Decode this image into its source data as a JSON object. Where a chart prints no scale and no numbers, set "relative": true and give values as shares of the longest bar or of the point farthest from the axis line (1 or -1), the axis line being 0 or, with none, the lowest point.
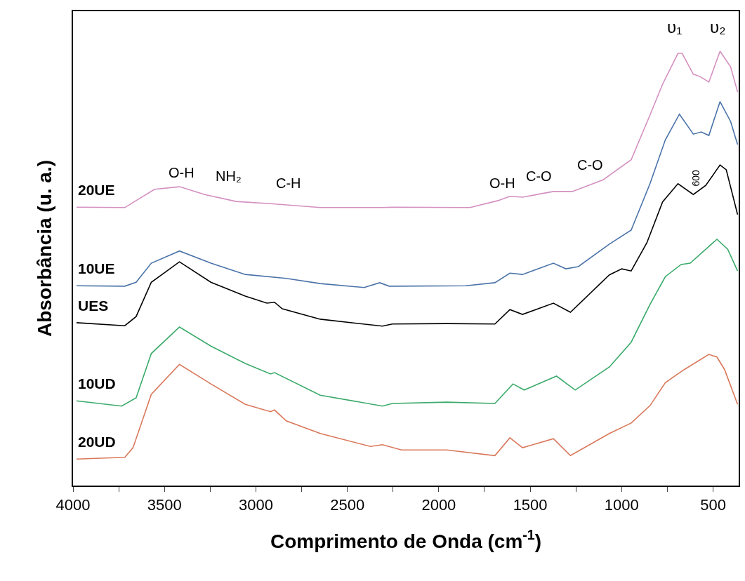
{
  "chart_data": {
    "type": "line",
    "relative": true,
    "xlabel": "Comprimento de Onda (cm$^{-1}$)",
    "ylabel": "Absorbância (u. a.)",
    "xlim": [
      4000,
      360
    ],
    "xticks": [
      4000,
      {
        "value": 3750,
        "label": null
      },
      3500,
      {
        "value": 3250,
        "label": null
      },
      3000,
      {
        "value": 2750,
        "label": null
      },
      2500,
      {
        "value": 2250,
        "label": null
      },
      2000,
      {
        "value": 1750,
        "label": null
      },
      1500,
      {
        "value": 1250,
        "label": null
      },
      1000,
      {
        "value": 750,
        "label": null
      },
      500
    ],
    "legend": false,
    "marker": "none",
    "line_style": "solid",
    "series": [
      {
        "name": "20UE",
        "color": "#d48fc0",
        "x": [
          3981,
          3717,
          3655,
          3554,
          3418,
          3280,
          3108,
          2920,
          2648,
          2308,
          2254,
          1829,
          1676,
          1611,
          1542,
          1373,
          1270,
          1101,
          948,
          845,
          776,
          692,
          669,
          608,
          573,
          523,
          462,
          404,
          366
        ],
        "values": [
          0.641,
          0.64,
          0.656,
          0.682,
          0.688,
          0.67,
          0.654,
          0.649,
          0.64,
          0.64,
          0.641,
          0.64,
          0.656,
          0.666,
          0.664,
          0.677,
          0.677,
          0.704,
          0.75,
          0.853,
          0.924,
          0.995,
          0.995,
          0.947,
          0.942,
          0.929,
          1.0,
          0.964,
          0.906
        ]
      },
      {
        "name": "10UE",
        "color": "#4a73a8",
        "x": [
          3981,
          3717,
          3655,
          3572,
          3418,
          3246,
          3058,
          2834,
          2648,
          2408,
          2323,
          2271,
          2254,
          1852,
          1693,
          1611,
          1542,
          1373,
          1305,
          1237,
          1067,
          948,
          845,
          761,
          684,
          608,
          565,
          523,
          462,
          404,
          366
        ],
        "values": [
          0.46,
          0.459,
          0.468,
          0.512,
          0.54,
          0.512,
          0.486,
          0.477,
          0.465,
          0.456,
          0.467,
          0.459,
          0.459,
          0.46,
          0.467,
          0.489,
          0.486,
          0.512,
          0.499,
          0.504,
          0.556,
          0.588,
          0.695,
          0.796,
          0.855,
          0.809,
          0.814,
          0.806,
          0.884,
          0.838,
          0.785
        ]
      },
      {
        "name": "UES",
        "color": "#000000",
        "x": [
          3981,
          3717,
          3655,
          3572,
          3418,
          3246,
          3058,
          2940,
          2898,
          2856,
          2648,
          2308,
          2254,
          1957,
          1693,
          1611,
          1542,
          1373,
          1280,
          1067,
          999,
          948,
          862,
          776,
          692,
          608,
          540,
          462,
          428,
          366
        ],
        "values": [
          0.375,
          0.368,
          0.389,
          0.468,
          0.515,
          0.468,
          0.436,
          0.42,
          0.422,
          0.407,
          0.383,
          0.367,
          0.372,
          0.373,
          0.372,
          0.405,
          0.394,
          0.42,
          0.399,
          0.485,
          0.499,
          0.494,
          0.559,
          0.653,
          0.695,
          0.67,
          0.691,
          0.738,
          0.727,
          0.624
        ]
      },
      {
        "name": "10UD",
        "color": "#3aaa6a",
        "x": [
          3981,
          3734,
          3655,
          3572,
          3418,
          3246,
          3058,
          2920,
          2898,
          2648,
          2308,
          2254,
          1957,
          1693,
          1594,
          1533,
          1356,
          1254,
          1067,
          948,
          845,
          761,
          675,
          625,
          479,
          420,
          366
        ],
        "values": [
          0.195,
          0.183,
          0.202,
          0.304,
          0.365,
          0.321,
          0.281,
          0.257,
          0.26,
          0.208,
          0.183,
          0.189,
          0.192,
          0.189,
          0.234,
          0.22,
          0.252,
          0.22,
          0.273,
          0.33,
          0.417,
          0.481,
          0.509,
          0.512,
          0.567,
          0.544,
          0.494
        ]
      },
      {
        "name": "20UD",
        "color": "#d9785a",
        "x": [
          3981,
          3717,
          3672,
          3572,
          3418,
          3246,
          3058,
          2920,
          2898,
          2834,
          2648,
          2374,
          2308,
          2204,
          1957,
          1693,
          1611,
          1542,
          1373,
          1280,
          1067,
          948,
          845,
          761,
          658,
          523,
          479,
          437,
          366
        ],
        "values": [
          0.061,
          0.065,
          0.087,
          0.21,
          0.279,
          0.234,
          0.187,
          0.17,
          0.174,
          0.149,
          0.12,
          0.09,
          0.094,
          0.082,
          0.082,
          0.069,
          0.11,
          0.087,
          0.108,
          0.069,
          0.12,
          0.144,
          0.184,
          0.237,
          0.267,
          0.302,
          0.296,
          0.267,
          0.187
        ]
      }
    ],
    "annotations": [
      "O-H",
      "NH₂",
      "C-H",
      "O-H",
      "C-O",
      "C-O",
      "600",
      "υ₁",
      "υ₂"
    ]
  }
}
